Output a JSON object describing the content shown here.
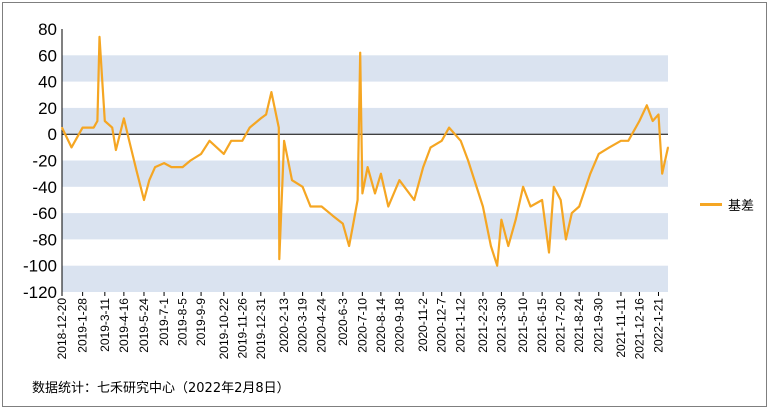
{
  "chart_data": {
    "type": "line",
    "title": "",
    "xlabel": "",
    "ylabel": "",
    "ylim": [
      -120,
      80
    ],
    "yticks": [
      80,
      60,
      40,
      20,
      0,
      -20,
      -40,
      -60,
      -80,
      -100,
      -120
    ],
    "grid": "alternating horizontal bands",
    "legend_position": "right",
    "x_tick_labels": [
      "2018-12-20",
      "2019-1-28",
      "2019-3-11",
      "2019-4-16",
      "2019-5-24",
      "2019-7-1",
      "2019-8-5",
      "2019-9-9",
      "2019-10-22",
      "2019-11-26",
      "2019-12-31",
      "2020-2-13",
      "2020-3-19",
      "2020-4-24",
      "2020-6-3",
      "2020-7-10",
      "2020-8-14",
      "2020-9-18",
      "2020-11-2",
      "2020-12-7",
      "2021-1-12",
      "2021-2-23",
      "2021-3-30",
      "2021-5-10",
      "2021-6-15",
      "2021-7-20",
      "2021-8-24",
      "2021-9-30",
      "2021-11-11",
      "2021-12-16",
      "2022-1-21"
    ],
    "series": [
      {
        "name": "基差",
        "color": "#f5a623",
        "x": [
          "2018-12-20",
          "2019-1-7",
          "2019-1-28",
          "2019-2-18",
          "2019-2-25",
          "2019-3-1",
          "2019-3-11",
          "2019-3-25",
          "2019-4-1",
          "2019-4-16",
          "2019-4-26",
          "2019-5-10",
          "2019-5-24",
          "2019-6-3",
          "2019-6-14",
          "2019-7-1",
          "2019-7-15",
          "2019-8-5",
          "2019-8-20",
          "2019-9-9",
          "2019-9-25",
          "2019-10-22",
          "2019-11-5",
          "2019-11-26",
          "2019-12-10",
          "2019-12-31",
          "2020-1-10",
          "2020-1-20",
          "2020-2-3",
          "2020-2-4",
          "2020-2-13",
          "2020-2-28",
          "2020-3-19",
          "2020-4-3",
          "2020-4-24",
          "2020-5-15",
          "2020-6-3",
          "2020-6-15",
          "2020-6-22",
          "2020-7-1",
          "2020-7-6",
          "2020-7-10",
          "2020-7-20",
          "2020-8-3",
          "2020-8-14",
          "2020-8-28",
          "2020-9-18",
          "2020-10-16",
          "2020-11-2",
          "2020-11-16",
          "2020-12-7",
          "2020-12-21",
          "2021-1-12",
          "2021-1-26",
          "2021-2-23",
          "2021-3-10",
          "2021-3-22",
          "2021-3-30",
          "2021-4-12",
          "2021-4-26",
          "2021-5-10",
          "2021-5-24",
          "2021-6-15",
          "2021-6-28",
          "2021-7-7",
          "2021-7-20",
          "2021-7-30",
          "2021-8-10",
          "2021-8-24",
          "2021-9-14",
          "2021-9-30",
          "2021-10-20",
          "2021-11-11",
          "2021-11-25",
          "2021-12-16",
          "2021-12-30",
          "2022-1-10",
          "2022-1-21",
          "2022-1-28",
          "2022-2-8"
        ],
        "values": [
          5,
          -10,
          5,
          5,
          10,
          74,
          10,
          5,
          -12,
          12,
          -5,
          -28,
          -50,
          -35,
          -25,
          -22,
          -25,
          -25,
          -20,
          -15,
          -5,
          -15,
          -5,
          -5,
          5,
          12,
          15,
          32,
          5,
          -95,
          -5,
          -35,
          -40,
          -55,
          -55,
          -62,
          -68,
          -85,
          -70,
          -50,
          62,
          -45,
          -25,
          -45,
          -30,
          -55,
          -35,
          -50,
          -25,
          -10,
          -5,
          5,
          -5,
          -20,
          -55,
          -85,
          -100,
          -65,
          -85,
          -65,
          -40,
          -55,
          -50,
          -90,
          -40,
          -50,
          -80,
          -60,
          -55,
          -30,
          -15,
          -10,
          -5,
          -5,
          10,
          22,
          10,
          15,
          -30,
          -10
        ]
      }
    ]
  },
  "legend": {
    "label": "基差"
  },
  "source": {
    "text": "数据统计：七禾研究中心（2022年2月8日）"
  }
}
